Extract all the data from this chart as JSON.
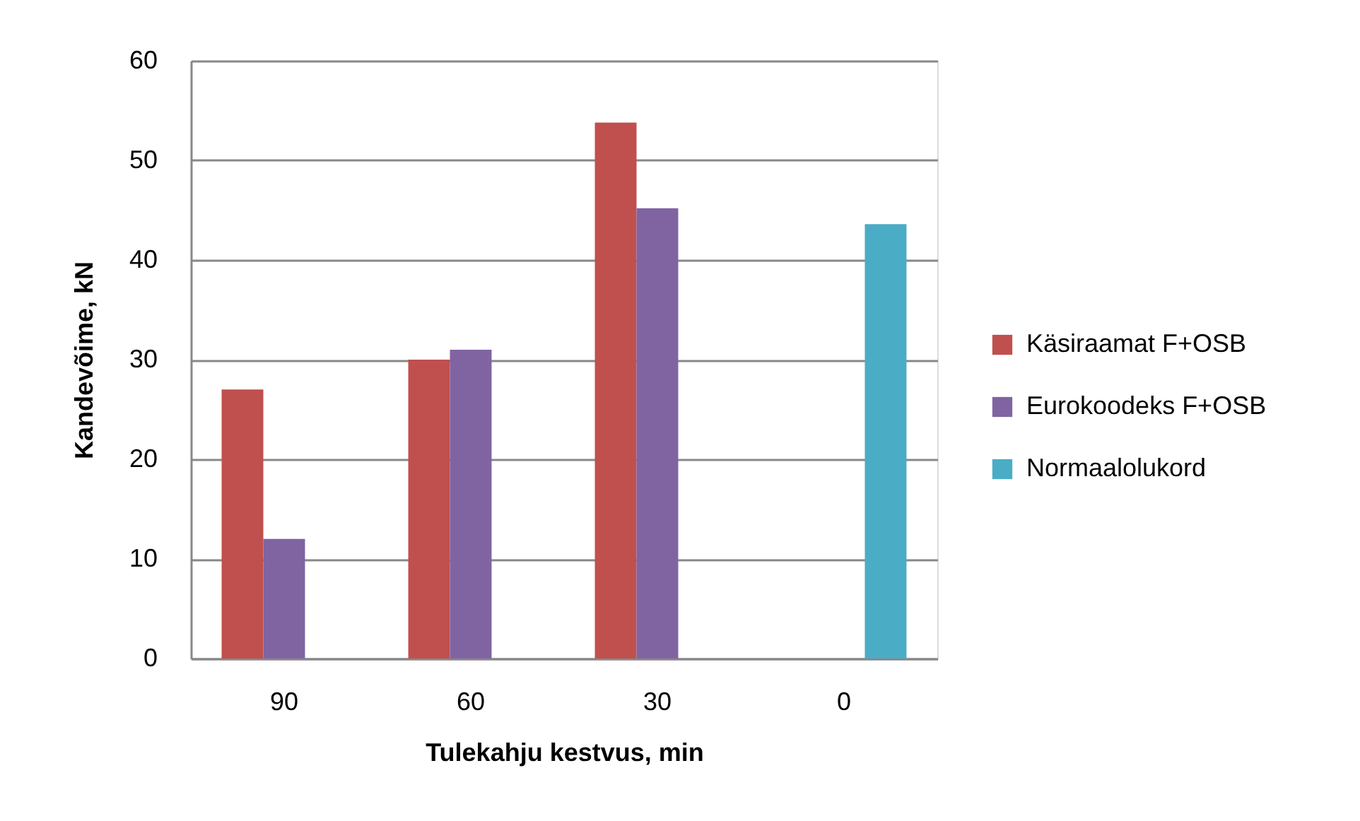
{
  "chart_data": {
    "type": "bar",
    "xlabel": "Tulekahju kestvus, min",
    "ylabel": "Kandevõime, kN",
    "categories": [
      "90",
      "60",
      "30",
      "0"
    ],
    "series": [
      {
        "name": "Käsiraamat F+OSB",
        "color": "#c0504d",
        "values": [
          27,
          30,
          53.8,
          null
        ]
      },
      {
        "name": "Eurokoodeks F+OSB",
        "color": "#8064a2",
        "values": [
          12,
          31,
          45.2,
          null
        ]
      },
      {
        "name": "Normaalolukord",
        "color": "#4bacc6",
        "values": [
          null,
          null,
          null,
          43.6
        ]
      }
    ],
    "ylim": [
      0,
      60
    ],
    "yticks": [
      0,
      10,
      20,
      30,
      40,
      50,
      60
    ],
    "grid": "y",
    "legend": "right"
  }
}
